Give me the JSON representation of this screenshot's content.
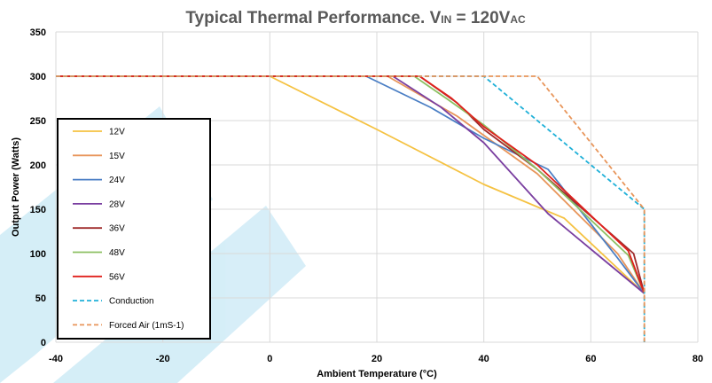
{
  "chart_data": {
    "type": "line",
    "title_parts": [
      "Typical Thermal Performance. V",
      "IN",
      " = 120V",
      "AC"
    ],
    "xlabel": "Ambient Temperature (°C)",
    "ylabel": "Output Power (Watts)",
    "xlim": [
      -40,
      80
    ],
    "ylim": [
      0,
      350
    ],
    "x_ticks": [
      "-40",
      "-20",
      "0",
      "20",
      "40",
      "60",
      "80"
    ],
    "y_ticks": [
      "0",
      "50",
      "100",
      "150",
      "200",
      "250",
      "300",
      "350"
    ],
    "grid": true,
    "legend_position": "left",
    "series": [
      {
        "name": "12V",
        "color": "#F5C242",
        "dash": "solid",
        "points": [
          [
            -40,
            300
          ],
          [
            0,
            300
          ],
          [
            20,
            240
          ],
          [
            40,
            178
          ],
          [
            55,
            140
          ],
          [
            70,
            55
          ]
        ]
      },
      {
        "name": "15V",
        "color": "#E8955A",
        "dash": "solid",
        "points": [
          [
            -40,
            300
          ],
          [
            22,
            300
          ],
          [
            35,
            255
          ],
          [
            50,
            190
          ],
          [
            65,
            100
          ],
          [
            70,
            55
          ]
        ]
      },
      {
        "name": "24V",
        "color": "#4A7EC4",
        "dash": "solid",
        "points": [
          [
            -40,
            300
          ],
          [
            18,
            300
          ],
          [
            30,
            265
          ],
          [
            40,
            230
          ],
          [
            52,
            195
          ],
          [
            65,
            95
          ],
          [
            70,
            55
          ]
        ]
      },
      {
        "name": "28V",
        "color": "#7A3FA0",
        "dash": "solid",
        "points": [
          [
            -40,
            300
          ],
          [
            23,
            300
          ],
          [
            32,
            265
          ],
          [
            40,
            225
          ],
          [
            52,
            145
          ],
          [
            62,
            95
          ],
          [
            70,
            55
          ]
        ]
      },
      {
        "name": "36V",
        "color": "#A02C2C",
        "dash": "solid",
        "points": [
          [
            -40,
            300
          ],
          [
            28,
            300
          ],
          [
            35,
            270
          ],
          [
            40,
            240
          ],
          [
            50,
            195
          ],
          [
            68,
            100
          ],
          [
            70,
            55
          ]
        ]
      },
      {
        "name": "48V",
        "color": "#8DC063",
        "dash": "solid",
        "points": [
          [
            -40,
            300
          ],
          [
            27,
            300
          ],
          [
            33,
            275
          ],
          [
            40,
            245
          ],
          [
            50,
            195
          ],
          [
            67,
            98
          ],
          [
            70,
            55
          ]
        ]
      },
      {
        "name": "56V",
        "color": "#E0201C",
        "dash": "solid",
        "points": [
          [
            -40,
            300
          ],
          [
            28,
            300
          ],
          [
            34,
            275
          ],
          [
            40,
            243
          ],
          [
            50,
            200
          ],
          [
            67,
            103
          ],
          [
            70,
            55
          ]
        ]
      },
      {
        "name": "Conduction",
        "color": "#1FB0D8",
        "dash": "dashed",
        "points": [
          [
            -40,
            300
          ],
          [
            40,
            300
          ],
          [
            70,
            150
          ],
          [
            70,
            0
          ]
        ]
      },
      {
        "name": "Forced Air (1mS-1)",
        "color": "#E8955A",
        "dash": "dashed",
        "points": [
          [
            -40,
            300
          ],
          [
            50,
            300
          ],
          [
            70,
            150
          ],
          [
            70,
            0
          ]
        ]
      }
    ]
  }
}
